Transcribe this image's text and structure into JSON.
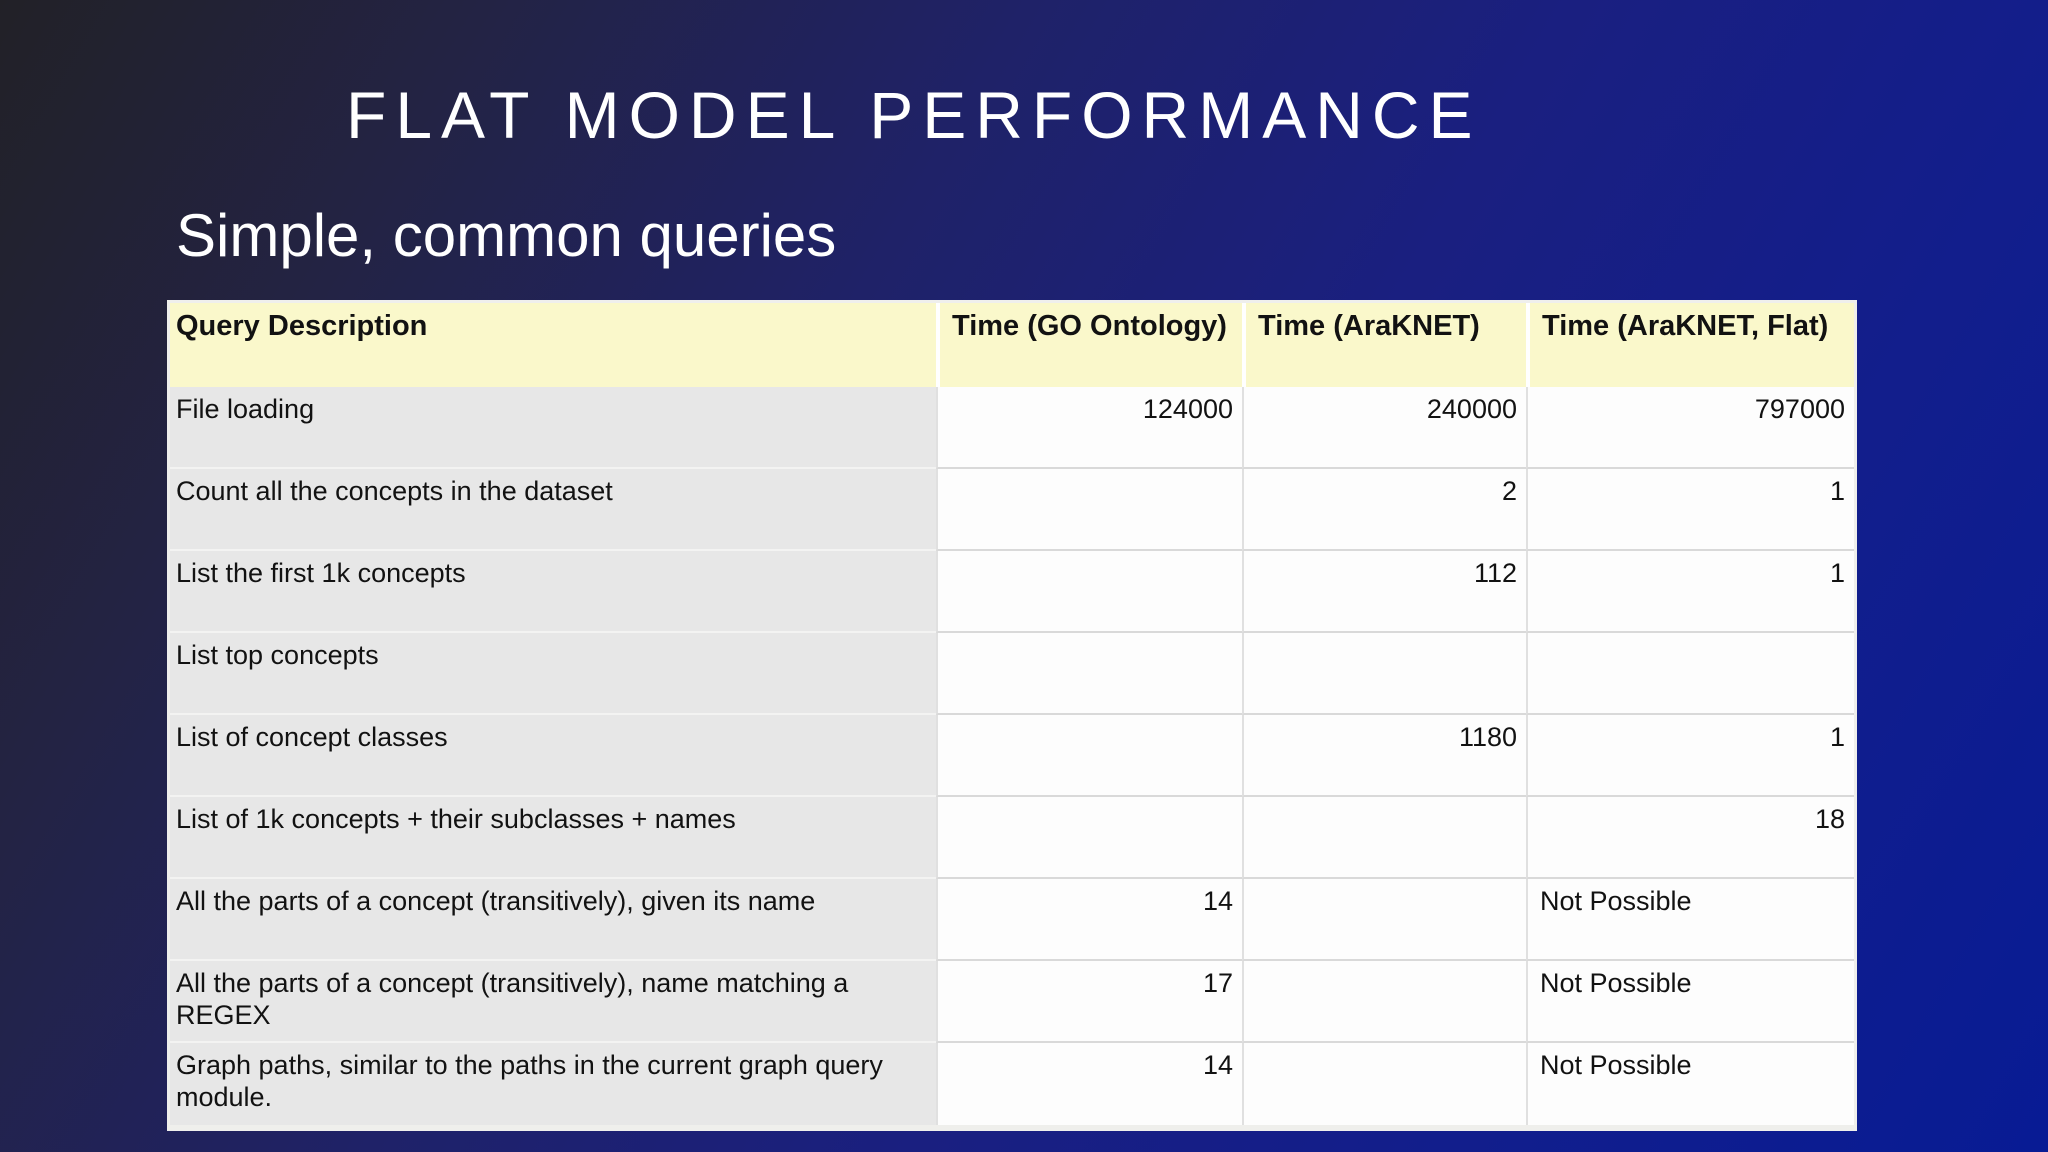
{
  "slide": {
    "title": "FLAT MODEL PERFORMANCE",
    "subtitle": "Simple, common queries"
  },
  "table": {
    "columns": [
      "Query Description",
      "Time (GO Ontology)",
      "Time (AraKNET)",
      "Time (AraKNET, Flat)"
    ],
    "rows": [
      {
        "c0": "File loading",
        "c1": "124000",
        "c2": "240000",
        "c3": "797000"
      },
      {
        "c0": "Count all the concepts in the dataset",
        "c1": "",
        "c2": "2",
        "c3": "1"
      },
      {
        "c0": "List the first 1k concepts",
        "c1": "",
        "c2": "112",
        "c3": "1"
      },
      {
        "c0": "List top concepts",
        "c1": "",
        "c2": "",
        "c3": ""
      },
      {
        "c0": "List of concept classes",
        "c1": "",
        "c2": "1180",
        "c3": "1"
      },
      {
        "c0": "List of 1k concepts + their subclasses + names",
        "c1": "",
        "c2": "",
        "c3": "18"
      },
      {
        "c0": "All the parts of a concept (transitively), given its name",
        "c1": "14",
        "c2": "",
        "c3": "Not Possible"
      },
      {
        "c0": "All the parts of a concept (transitively), name matching a REGEX",
        "c1": "17",
        "c2": "",
        "c3": "Not Possible"
      },
      {
        "c0": "Graph paths, similar to the paths in the current graph query module.",
        "c1": "14",
        "c2": "",
        "c3": "Not Possible"
      }
    ]
  },
  "colors": {
    "background_dark": "#222127",
    "background_blue": "#081b94",
    "header_bg": "#faf8cb",
    "description_bg": "#e7e7e7",
    "cell_bg": "#fdfdfd",
    "slide_text": "#ffffff",
    "table_text": "#121212"
  }
}
